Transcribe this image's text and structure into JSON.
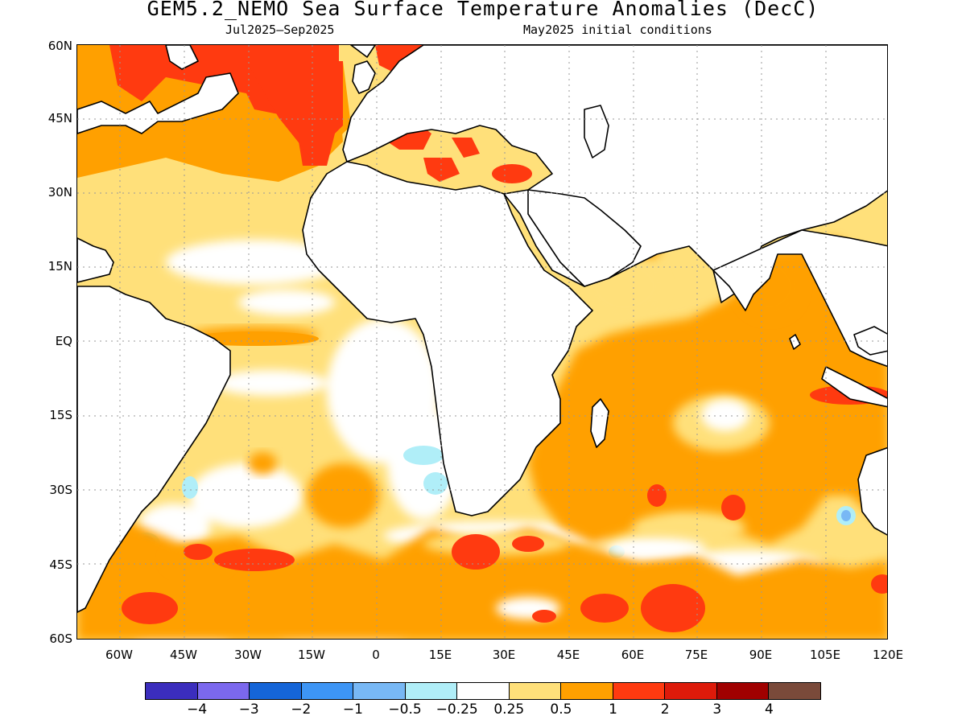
{
  "title": "GEM5.2_NEMO Sea Surface Temperature Anomalies (DecC)",
  "subtitle_left": "Jul2025–Sep2025",
  "subtitle_right": "May2025 initial conditions",
  "y_labels": [
    "60N",
    "45N",
    "30N",
    "15N",
    "EQ",
    "15S",
    "30S",
    "45S",
    "60S"
  ],
  "x_labels": [
    "60W",
    "45W",
    "30W",
    "15W",
    "0",
    "15E",
    "30E",
    "45E",
    "60E",
    "75E",
    "90E",
    "105E",
    "120E"
  ],
  "colorbar": {
    "colors": [
      "#3b2dbd",
      "#7b68ee",
      "#1565d8",
      "#3d95f5",
      "#78b8f5",
      "#b0eef8",
      "#ffffff",
      "#ffe07a",
      "#ffa000",
      "#ff3a10",
      "#dd1a0a",
      "#a00000",
      "#7a4a3a"
    ],
    "labels": [
      "−4",
      "−3",
      "−2",
      "−1",
      "−0.5",
      "−0.25",
      "0.25",
      "0.5",
      "1",
      "2",
      "3",
      "4"
    ]
  },
  "map": {
    "land_color": "#ffffff",
    "coast_color": "#000000",
    "grid": true
  }
}
